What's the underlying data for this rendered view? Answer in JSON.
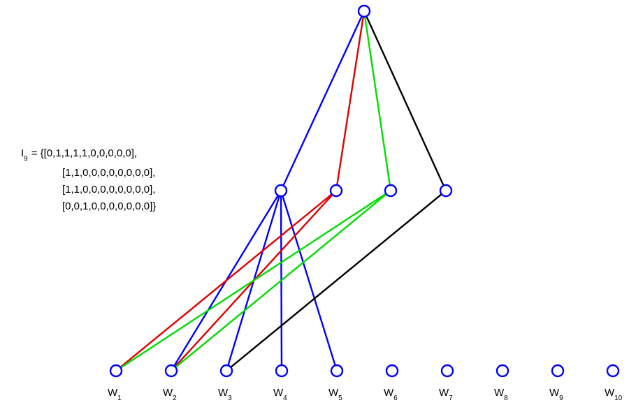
{
  "annotation": {
    "symbol": "I",
    "subscript": "9",
    "lines": [
      "= {[0,1,1,1,1,0,0,0,0,0],",
      "[1,1,0,0,0,0,0,0,0,0],",
      "[1,1,0,0,0,0,0,0,0,0],",
      "[0,0,1,0,0,0,0,0,0,0]}"
    ]
  },
  "colors": {
    "node_stroke": "#0000ff",
    "groups": [
      "#0000ff",
      "#e00000",
      "#00dd00",
      "#000000"
    ]
  },
  "words": [
    {
      "base": "W",
      "sub": "1"
    },
    {
      "base": "W",
      "sub": "2"
    },
    {
      "base": "W",
      "sub": "3"
    },
    {
      "base": "W",
      "sub": "4"
    },
    {
      "base": "W",
      "sub": "5"
    },
    {
      "base": "W",
      "sub": "6"
    },
    {
      "base": "W",
      "sub": "7"
    },
    {
      "base": "W",
      "sub": "8"
    },
    {
      "base": "W",
      "sub": "9"
    },
    {
      "base": "W",
      "sub": "10"
    }
  ],
  "membership": [
    [
      0,
      1,
      1,
      1,
      1,
      0,
      0,
      0,
      0,
      0
    ],
    [
      1,
      1,
      0,
      0,
      0,
      0,
      0,
      0,
      0,
      0
    ],
    [
      1,
      1,
      0,
      0,
      0,
      0,
      0,
      0,
      0,
      0
    ],
    [
      0,
      0,
      1,
      0,
      0,
      0,
      0,
      0,
      0,
      0
    ]
  ]
}
